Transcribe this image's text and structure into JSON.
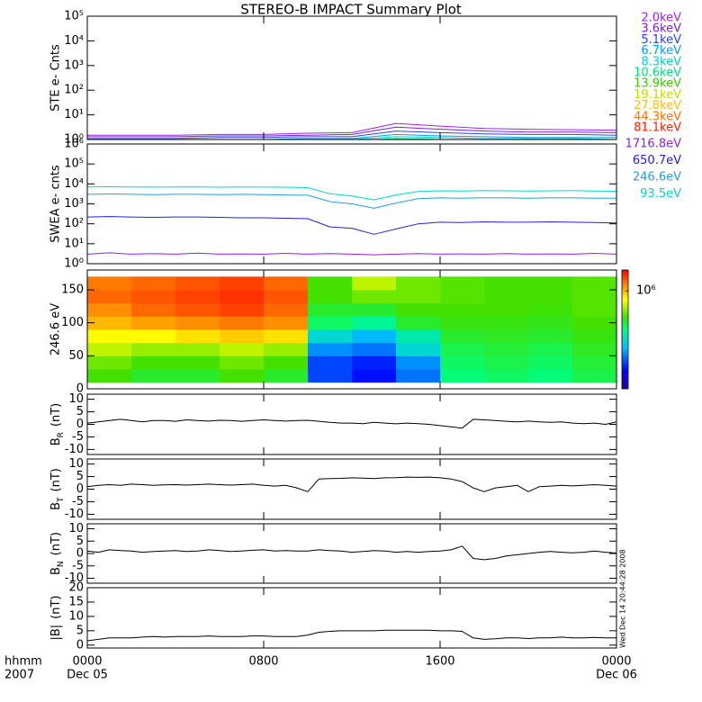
{
  "title": "STEREO-B IMPACT Summary Plot",
  "timestamp": "Wed Dec 14 20:44:28 2008",
  "chart_data": [
    {
      "type": "line",
      "ylabel": "STE e- Cnts",
      "log_y": true,
      "xlim": [
        0,
        24
      ],
      "ylim": [
        1,
        100000
      ],
      "yticks": [
        {
          "value": 1,
          "label": "10⁰"
        },
        {
          "value": 10,
          "label": "10¹"
        },
        {
          "value": 100,
          "label": "10²"
        },
        {
          "value": 1000,
          "label": "10³"
        },
        {
          "value": 10000,
          "label": "10⁴"
        },
        {
          "value": 100000,
          "label": "10⁵"
        }
      ],
      "x": [
        0,
        2,
        4,
        6,
        8,
        10,
        12,
        14,
        16,
        18,
        20,
        22,
        24
      ],
      "series": [
        {
          "name": "2.0keV",
          "color": "#a020f0",
          "values": [
            1.5,
            1.5,
            1.5,
            1.6,
            1.6,
            1.8,
            1.9,
            4.5,
            3.5,
            2.8,
            2.6,
            2.5,
            2.4
          ]
        },
        {
          "name": "3.6keV",
          "color": "#7a22d8",
          "values": [
            1.3,
            1.3,
            1.3,
            1.4,
            1.4,
            1.5,
            1.6,
            3.2,
            2.6,
            2.2,
            2.0,
            2.0,
            1.9
          ]
        },
        {
          "name": "5.1keV",
          "color": "#2a40ff",
          "values": [
            1.1,
            1.1,
            1.1,
            1.2,
            1.2,
            1.3,
            1.3,
            2.2,
            1.9,
            1.7,
            1.6,
            1.6,
            1.5
          ]
        },
        {
          "name": "6.7keV",
          "color": "#00a0ff",
          "values": [
            1.0,
            1.0,
            1.0,
            1.0,
            1.0,
            1.1,
            1.1,
            1.6,
            1.4,
            1.3,
            1.2,
            1.2,
            1.2
          ]
        },
        {
          "name": "8.3keV",
          "color": "#00d0d0",
          "values": [
            0.9,
            0.9,
            0.9,
            0.9,
            0.9,
            1.0,
            1.0,
            1.3,
            1.2,
            1.1,
            1.1,
            1.1,
            1.0
          ]
        },
        {
          "name": "10.6keV",
          "color": "#00e080",
          "values": [
            0.9,
            0.9,
            0.9,
            0.9,
            0.9,
            0.9,
            0.9,
            1.1,
            1.0,
            1.0,
            1.0,
            1.0,
            0.9
          ]
        },
        {
          "name": "13.9keV",
          "color": "#30d000",
          "values": [
            0.8,
            0.8,
            0.8,
            0.8,
            0.8,
            0.8,
            0.8,
            1.0,
            0.9,
            0.9,
            0.9,
            0.9,
            0.8
          ]
        },
        {
          "name": "19.1keV",
          "color": "#c0e000",
          "values": [
            0.8,
            0.8,
            0.8,
            0.8,
            0.8,
            0.8,
            0.8,
            0.9,
            0.9,
            0.8,
            0.8,
            0.8,
            0.8
          ]
        },
        {
          "name": "27.8keV",
          "color": "#ffc000",
          "values": [
            0.7,
            0.7,
            0.7,
            0.7,
            0.7,
            0.7,
            0.7,
            0.8,
            0.8,
            0.7,
            0.7,
            0.7,
            0.7
          ]
        },
        {
          "name": "44.3keV",
          "color": "#ff7000",
          "values": [
            0.7,
            0.7,
            0.7,
            0.7,
            0.7,
            0.7,
            0.7,
            0.7,
            0.7,
            0.7,
            0.7,
            0.7,
            0.7
          ]
        },
        {
          "name": "81.1keV",
          "color": "#ff2000",
          "values": [
            0.6,
            0.6,
            0.6,
            0.6,
            0.6,
            0.6,
            0.6,
            0.7,
            0.7,
            0.6,
            0.6,
            0.6,
            0.6
          ]
        }
      ]
    },
    {
      "type": "line",
      "ylabel": "SWEA e- cnts",
      "log_y": true,
      "xlim": [
        0,
        24
      ],
      "ylim": [
        1,
        1000000
      ],
      "yticks": [
        {
          "value": 1,
          "label": "10⁰"
        },
        {
          "value": 10,
          "label": "10¹"
        },
        {
          "value": 100,
          "label": "10²"
        },
        {
          "value": 1000,
          "label": "10³"
        },
        {
          "value": 10000,
          "label": "10⁴"
        },
        {
          "value": 100000,
          "label": "10⁵"
        },
        {
          "value": 1000000,
          "label": "10⁶"
        }
      ],
      "x": [
        0,
        1,
        2,
        3,
        4,
        5,
        6,
        7,
        8,
        9,
        10,
        11,
        12,
        13,
        14,
        15,
        16,
        17,
        18,
        19,
        20,
        21,
        22,
        23,
        24
      ],
      "series": [
        {
          "name": "1716.8eV",
          "color": "#9020e0",
          "values": [
            3,
            3.5,
            3,
            3.2,
            3,
            3.4,
            3,
            3.1,
            3,
            3.3,
            3,
            3.2,
            3,
            2.8,
            3,
            3.2,
            3,
            3.1,
            3,
            3.2,
            3,
            3.1,
            3,
            3.3,
            3
          ]
        },
        {
          "name": "650.7eV",
          "color": "#2020e0",
          "values": [
            220,
            230,
            220,
            210,
            220,
            220,
            210,
            200,
            200,
            190,
            180,
            70,
            60,
            30,
            55,
            100,
            120,
            115,
            125,
            120,
            120,
            125,
            120,
            115,
            110
          ]
        },
        {
          "name": "246.6eV",
          "color": "#20a0e0",
          "values": [
            3000,
            3100,
            3000,
            2900,
            3000,
            3000,
            2900,
            3000,
            2900,
            2800,
            2700,
            1300,
            1000,
            600,
            1100,
            1800,
            2000,
            1900,
            2000,
            2000,
            1900,
            2000,
            2000,
            1900,
            1900
          ]
        },
        {
          "name": "93.5eV",
          "color": "#00d8c8",
          "values": [
            7000,
            7200,
            7000,
            6900,
            7000,
            7100,
            6800,
            7000,
            6900,
            6800,
            6500,
            3200,
            2500,
            1600,
            2800,
            4200,
            4500,
            4400,
            4600,
            4500,
            4400,
            4500,
            4600,
            4400,
            4300
          ]
        }
      ]
    },
    {
      "type": "heatmap",
      "ylabel": "246.6 eV",
      "xlim": [
        0,
        24
      ],
      "ylim": [
        0,
        180
      ],
      "yticks": [
        0,
        50,
        100,
        150
      ],
      "clim": [
        150000,
        1500000
      ],
      "cticks": [
        {
          "value": 1000000,
          "label": "10⁶"
        }
      ],
      "x_bins": [
        0,
        2,
        4,
        6,
        8,
        10,
        12,
        14,
        16,
        18,
        20,
        22,
        24
      ],
      "y_bins": [
        10,
        30,
        50,
        70,
        90,
        110,
        130,
        150,
        170
      ],
      "z": [
        [
          600000,
          650000,
          750000,
          850000,
          1000000,
          1100000,
          1200000,
          1150000
        ],
        [
          550000,
          600000,
          700000,
          850000,
          1050000,
          1200000,
          1250000,
          1200000
        ],
        [
          550000,
          600000,
          700000,
          900000,
          1100000,
          1250000,
          1300000,
          1250000
        ],
        [
          600000,
          650000,
          750000,
          950000,
          1150000,
          1300000,
          1350000,
          1300000
        ],
        [
          550000,
          600000,
          700000,
          900000,
          1100000,
          1200000,
          1250000,
          1200000
        ],
        [
          250000,
          250000,
          300000,
          380000,
          500000,
          550000,
          600000,
          600000
        ],
        [
          220000,
          230000,
          280000,
          330000,
          450000,
          550000,
          650000,
          750000
        ],
        [
          280000,
          300000,
          380000,
          420000,
          550000,
          600000,
          650000,
          650000
        ],
        [
          480000,
          500000,
          520000,
          550000,
          580000,
          600000,
          620000,
          620000
        ],
        [
          500000,
          520000,
          540000,
          560000,
          580000,
          600000,
          600000,
          600000
        ],
        [
          480000,
          500000,
          520000,
          550000,
          570000,
          590000,
          600000,
          600000
        ],
        [
          520000,
          540000,
          560000,
          580000,
          600000,
          620000,
          620000,
          620000
        ]
      ]
    },
    {
      "type": "line",
      "ylabel": {
        "main": "B",
        "sub": "R",
        "unit": "(nT)"
      },
      "xlim": [
        0,
        24
      ],
      "ylim": [
        -12,
        12
      ],
      "yticks": [
        -10,
        -5,
        0,
        5,
        10
      ],
      "x": [
        0,
        0.5,
        1,
        1.5,
        2,
        2.5,
        3,
        3.5,
        4,
        4.5,
        5,
        5.5,
        6,
        6.5,
        7,
        7.5,
        8,
        8.5,
        9,
        9.5,
        10,
        10.5,
        11,
        11.5,
        12,
        12.5,
        13,
        13.5,
        14,
        14.5,
        15,
        15.5,
        16,
        16.5,
        17,
        17.5,
        18,
        18.5,
        19,
        19.5,
        20,
        20.5,
        21,
        21.5,
        22,
        22.5,
        23,
        23.5,
        24
      ],
      "series": [
        {
          "color": "#000000",
          "values": [
            0.5,
            1,
            1.5,
            2,
            1.5,
            1,
            1.5,
            1.5,
            1.2,
            1.8,
            1.5,
            1.3,
            1.6,
            1.5,
            1.2,
            1.5,
            1.8,
            1.5,
            1.3,
            1.5,
            1.6,
            1.2,
            0.8,
            0.5,
            0.5,
            0.3,
            0.8,
            0.5,
            0.2,
            0.5,
            0.3,
            0,
            -0.5,
            -1,
            -1.5,
            2,
            1.8,
            1.5,
            1.2,
            1,
            1.3,
            1,
            0.8,
            1,
            0.5,
            0.3,
            0.5,
            0,
            1
          ]
        }
      ]
    },
    {
      "type": "line",
      "ylabel": {
        "main": "B",
        "sub": "T",
        "unit": "(nT)"
      },
      "xlim": [
        0,
        24
      ],
      "ylim": [
        -12,
        12
      ],
      "yticks": [
        -10,
        -5,
        0,
        5,
        10
      ],
      "x": [
        0,
        0.5,
        1,
        1.5,
        2,
        2.5,
        3,
        3.5,
        4,
        4.5,
        5,
        5.5,
        6,
        6.5,
        7,
        7.5,
        8,
        8.5,
        9,
        9.5,
        10,
        10.5,
        11,
        11.5,
        12,
        12.5,
        13,
        13.5,
        14,
        14.5,
        15,
        15.5,
        16,
        16.5,
        17,
        17.5,
        18,
        18.5,
        19,
        19.5,
        20,
        20.5,
        21,
        21.5,
        22,
        22.5,
        23,
        23.5,
        24
      ],
      "series": [
        {
          "color": "#000000",
          "values": [
            1,
            1.5,
            1.8,
            1.5,
            2,
            1.8,
            1.5,
            1.7,
            1.8,
            1.6,
            1.8,
            2,
            1.8,
            1.6,
            1.8,
            2,
            1.5,
            1.2,
            1.5,
            0.5,
            -1,
            4,
            4.2,
            4.3,
            4.5,
            4.4,
            4.2,
            4.5,
            4.6,
            4.8,
            4.7,
            4.8,
            4.5,
            4,
            3,
            0.5,
            -1,
            0.5,
            1,
            1.5,
            -1,
            1,
            1.2,
            1.5,
            1.3,
            1.5,
            1.8,
            1.5,
            1.2
          ]
        }
      ]
    },
    {
      "type": "line",
      "ylabel": {
        "main": "B",
        "sub": "N",
        "unit": "(nT)"
      },
      "xlim": [
        0,
        24
      ],
      "ylim": [
        -12,
        12
      ],
      "yticks": [
        -10,
        -5,
        0,
        5,
        10
      ],
      "x": [
        0,
        0.5,
        1,
        1.5,
        2,
        2.5,
        3,
        3.5,
        4,
        4.5,
        5,
        5.5,
        6,
        6.5,
        7,
        7.5,
        8,
        8.5,
        9,
        9.5,
        10,
        10.5,
        11,
        11.5,
        12,
        12.5,
        13,
        13.5,
        14,
        14.5,
        15,
        15.5,
        16,
        16.5,
        17,
        17.5,
        18,
        18.5,
        19,
        19.5,
        20,
        20.5,
        21,
        21.5,
        22,
        22.5,
        23,
        23.5,
        24
      ],
      "series": [
        {
          "color": "#000000",
          "values": [
            1,
            0.5,
            1.5,
            1.2,
            1,
            0.5,
            0.8,
            1,
            1.2,
            0.8,
            1,
            1.5,
            1.2,
            0.8,
            1,
            1.3,
            1.5,
            1,
            1.2,
            1,
            1,
            1.5,
            1.2,
            1,
            0.5,
            0.8,
            1.2,
            1,
            0.5,
            0.8,
            0.5,
            0.8,
            1,
            1.5,
            3,
            -2,
            -2.5,
            -2,
            -1,
            -0.5,
            0,
            0.5,
            0.8,
            0.5,
            0.3,
            0.5,
            1,
            0.5,
            0.2
          ]
        }
      ]
    },
    {
      "type": "line",
      "ylabel": {
        "main": "|B|",
        "unit": "(nT)"
      },
      "xlim": [
        0,
        24
      ],
      "ylim": [
        -1,
        20
      ],
      "yticks": [
        0,
        5,
        10,
        15,
        20
      ],
      "xticks": [
        {
          "value": 0,
          "label": "0000"
        },
        {
          "value": 8,
          "label": "0800"
        },
        {
          "value": 16,
          "label": "1600"
        },
        {
          "value": 24,
          "label": "0000"
        }
      ],
      "date_labels": [
        {
          "value": 0,
          "label": "Dec 05"
        },
        {
          "value": 24,
          "label": "Dec 06"
        }
      ],
      "corner_labels": [
        "hhmm",
        "2007"
      ],
      "x": [
        0,
        0.5,
        1,
        1.5,
        2,
        2.5,
        3,
        3.5,
        4,
        4.5,
        5,
        5.5,
        6,
        6.5,
        7,
        7.5,
        8,
        8.5,
        9,
        9.5,
        10,
        10.5,
        11,
        11.5,
        12,
        12.5,
        13,
        13.5,
        14,
        14.5,
        15,
        15.5,
        16,
        16.5,
        17,
        17.5,
        18,
        18.5,
        19,
        19.5,
        20,
        20.5,
        21,
        21.5,
        22,
        22.5,
        23,
        23.5,
        24
      ],
      "series": [
        {
          "color": "#000000",
          "values": [
            1.5,
            2,
            2.5,
            2.5,
            2.5,
            2.8,
            3,
            2.8,
            3,
            3,
            3,
            3.2,
            3,
            3,
            3,
            3.2,
            3.2,
            3,
            3,
            3,
            3.5,
            4.5,
            4.8,
            5,
            5,
            5,
            5,
            5.2,
            5.2,
            5.2,
            5.2,
            5.2,
            5,
            5,
            4.8,
            2.5,
            2,
            2.2,
            2.5,
            2.5,
            2.3,
            2.5,
            2.5,
            2.8,
            2.5,
            2.5,
            2.7,
            2.5,
            2.5
          ]
        }
      ]
    }
  ]
}
